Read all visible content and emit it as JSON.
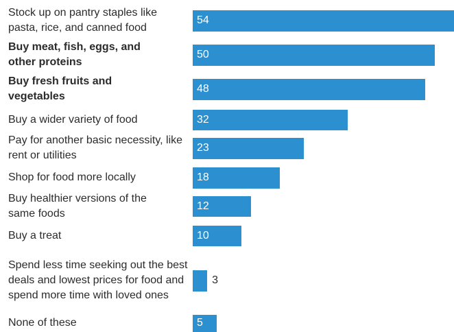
{
  "chart_data": {
    "type": "bar",
    "orientation": "horizontal",
    "title": "",
    "xlabel": "",
    "ylabel": "",
    "xlim": [
      0,
      54
    ],
    "grid": false,
    "legend": "none",
    "bar_color": "#2b8fd0",
    "categories": [
      "Stock up on pantry staples like pasta, rice, and canned food",
      "Buy meat, fish, eggs, and other proteins",
      "Buy fresh fruits and vegetables",
      "Buy a wider variety of food",
      "Pay for another basic necessity, like rent or utilities",
      "Shop for food more locally",
      "Buy healthier versions of the same foods",
      "Buy a treat",
      "Spend less time seeking out the best deals and lowest prices for food and spend more time with loved ones",
      "None of these"
    ],
    "bold_categories": [
      "Buy meat, fish, eggs, and other proteins",
      "Buy fresh fruits and vegetables"
    ],
    "values": [
      54,
      50,
      48,
      32,
      23,
      18,
      12,
      10,
      3,
      5
    ]
  }
}
